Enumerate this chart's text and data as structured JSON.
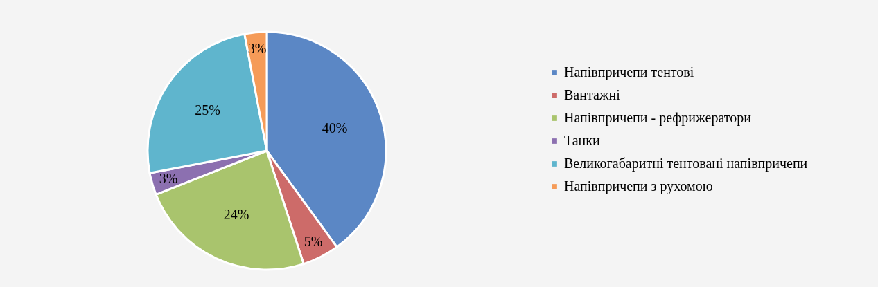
{
  "chart_data": {
    "type": "pie",
    "categories": [
      "Напівпричепи тентові",
      "Вантажні",
      "Напівпричепи - рефрижератори",
      "Танки",
      "Великогабаритні тентовані напівпричепи",
      "Напівпричепи з рухомою"
    ],
    "values": [
      40,
      5,
      24,
      3,
      25,
      3
    ],
    "value_labels": [
      "40%",
      "5%",
      "24%",
      "3%",
      "25%",
      "3%"
    ],
    "colors": [
      "#5b87c5",
      "#cd6b69",
      "#a9c46d",
      "#8c70b0",
      "#5fb5cd",
      "#f59b58"
    ],
    "legend": "right"
  }
}
